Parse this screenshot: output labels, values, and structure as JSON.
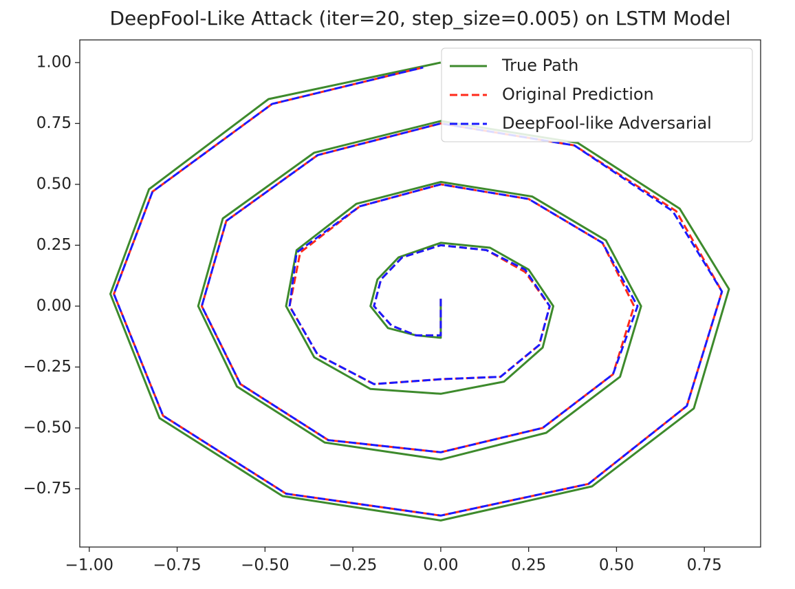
{
  "chart_data": {
    "type": "line",
    "title": "DeepFool-Like Attack (iter=20, step_size=0.005) on LSTM Model",
    "xlim": [
      -1.027,
      0.91
    ],
    "ylim": [
      -0.989,
      1.093
    ],
    "xticks": [
      {
        "value": -1,
        "label": "−1.00"
      },
      {
        "value": -0.75,
        "label": "−0.75"
      },
      {
        "value": -0.5,
        "label": "−0.50"
      },
      {
        "value": -0.25,
        "label": "−0.25"
      },
      {
        "value": 0,
        "label": "0.00"
      },
      {
        "value": 0.25,
        "label": "0.25"
      },
      {
        "value": 0.5,
        "label": "0.50"
      },
      {
        "value": 0.75,
        "label": "0.75"
      }
    ],
    "yticks": [
      {
        "value": -0.75,
        "label": "−0.75"
      },
      {
        "value": -0.5,
        "label": "−0.50"
      },
      {
        "value": -0.25,
        "label": "−0.25"
      },
      {
        "value": 0,
        "label": "0.00"
      },
      {
        "value": 0.25,
        "label": "0.25"
      },
      {
        "value": 0.5,
        "label": "0.50"
      },
      {
        "value": 0.75,
        "label": "0.75"
      },
      {
        "value": 1,
        "label": "1.00"
      }
    ],
    "legend": "upper right",
    "series": [
      {
        "name": "True Path",
        "color": "#3d8a2c",
        "dash": false,
        "x": [
          0.0,
          0.0,
          -0.07,
          -0.15,
          -0.2,
          -0.18,
          -0.12,
          0.0,
          0.14,
          0.25,
          0.32,
          0.29,
          0.18,
          0.0,
          -0.2,
          -0.36,
          -0.44,
          -0.41,
          -0.24,
          0.0,
          0.26,
          0.47,
          0.57,
          0.51,
          0.3,
          0.0,
          -0.33,
          -0.58,
          -0.69,
          -0.62,
          -0.36,
          0.0,
          0.39,
          0.68,
          0.82,
          0.72,
          0.43,
          0.0,
          -0.45,
          -0.8,
          -0.94,
          -0.83,
          -0.49,
          0.0
        ],
        "values": [
          0.03,
          -0.13,
          -0.12,
          -0.09,
          0.0,
          0.11,
          0.2,
          0.26,
          0.24,
          0.15,
          0.0,
          -0.17,
          -0.31,
          -0.36,
          -0.34,
          -0.21,
          0.0,
          0.23,
          0.42,
          0.51,
          0.45,
          0.27,
          0.0,
          -0.29,
          -0.52,
          -0.63,
          -0.56,
          -0.33,
          0.0,
          0.36,
          0.63,
          0.76,
          0.67,
          0.4,
          0.07,
          -0.42,
          -0.74,
          -0.88,
          -0.78,
          -0.46,
          0.05,
          0.48,
          0.85,
          1.0
        ]
      },
      {
        "name": "Original Prediction",
        "color": "#ff2a1a",
        "dash": true,
        "x": [
          0.0,
          0.0,
          -0.07,
          -0.14,
          -0.19,
          -0.17,
          -0.11,
          0.0,
          0.13,
          0.24,
          0.31,
          0.28,
          0.17,
          0.0,
          -0.19,
          -0.35,
          -0.43,
          -0.4,
          -0.23,
          0.0,
          0.25,
          0.46,
          0.55,
          0.49,
          0.29,
          0.0,
          -0.32,
          -0.57,
          -0.68,
          -0.61,
          -0.35,
          0.0,
          0.38,
          0.67,
          0.8,
          0.7,
          0.42,
          0.0,
          -0.44,
          -0.79,
          -0.93,
          -0.82,
          -0.48,
          -0.05
        ],
        "values": [
          0.03,
          -0.12,
          -0.12,
          -0.08,
          0.0,
          0.11,
          0.2,
          0.25,
          0.23,
          0.14,
          0.0,
          -0.16,
          -0.29,
          -0.3,
          -0.32,
          -0.2,
          0.0,
          0.22,
          0.41,
          0.5,
          0.44,
          0.26,
          0.0,
          -0.28,
          -0.5,
          -0.6,
          -0.55,
          -0.32,
          0.0,
          0.35,
          0.62,
          0.75,
          0.66,
          0.39,
          0.06,
          -0.41,
          -0.73,
          -0.86,
          -0.77,
          -0.45,
          0.05,
          0.47,
          0.83,
          0.98
        ]
      },
      {
        "name": "DeepFool-like Adversarial",
        "color": "#1a1aff",
        "dash": true,
        "x": [
          0.0,
          0.0,
          -0.07,
          -0.14,
          -0.19,
          -0.17,
          -0.11,
          0.0,
          0.13,
          0.24,
          0.31,
          0.28,
          0.17,
          0.0,
          -0.19,
          -0.35,
          -0.43,
          -0.41,
          -0.23,
          0.0,
          0.25,
          0.46,
          0.56,
          0.49,
          0.29,
          0.0,
          -0.32,
          -0.57,
          -0.68,
          -0.61,
          -0.35,
          0.0,
          0.38,
          0.66,
          0.8,
          0.7,
          0.42,
          0.0,
          -0.44,
          -0.79,
          -0.93,
          -0.82,
          -0.48,
          -0.05
        ],
        "values": [
          0.03,
          -0.12,
          -0.12,
          -0.08,
          0.0,
          0.11,
          0.2,
          0.25,
          0.23,
          0.15,
          0.0,
          -0.16,
          -0.29,
          -0.3,
          -0.32,
          -0.2,
          0.0,
          0.22,
          0.41,
          0.5,
          0.44,
          0.26,
          0.0,
          -0.28,
          -0.5,
          -0.6,
          -0.55,
          -0.32,
          0.0,
          0.35,
          0.62,
          0.75,
          0.66,
          0.39,
          0.06,
          -0.41,
          -0.73,
          -0.86,
          -0.77,
          -0.45,
          0.05,
          0.47,
          0.83,
          0.98
        ]
      }
    ]
  }
}
